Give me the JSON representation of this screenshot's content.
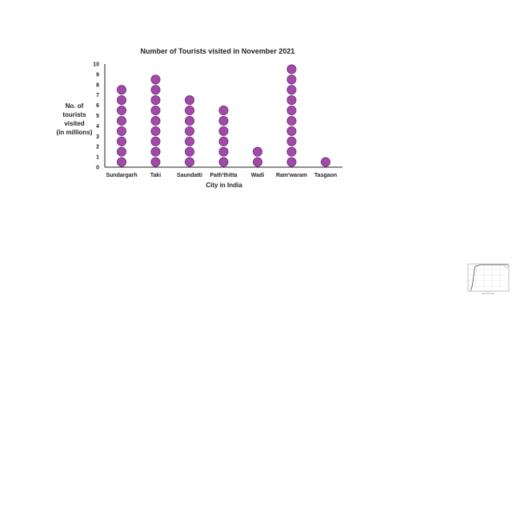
{
  "chart_data": {
    "type": "scatter",
    "style": "dot-plot",
    "title": "Number of Tourists visited in November 2021",
    "xlabel": "City in India",
    "ylabel_lines": [
      "No. of",
      "tourists",
      "visited",
      "(in millions)"
    ],
    "categories": [
      "Sundargarh",
      "Taki",
      "Saundatti",
      "Path'thitta",
      "Wadi",
      "Ram'waram",
      "Tasgaon"
    ],
    "values": [
      7,
      8,
      6,
      5,
      1,
      9,
      0
    ],
    "ylim": [
      0,
      10
    ],
    "yticks": [
      0,
      1,
      2,
      3,
      4,
      5,
      6,
      7,
      8,
      9,
      10
    ],
    "grid": false,
    "marker_color": "#a14aa8",
    "marker_edge_color": "#6e2c75"
  },
  "thumbnail": {
    "description_icon": "mini-line-chart-icon"
  }
}
